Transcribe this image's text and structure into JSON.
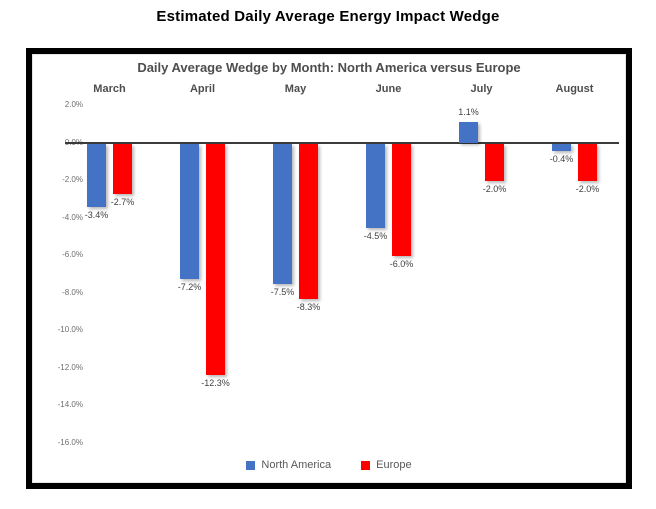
{
  "page_title": "Estimated Daily Average Energy Impact Wedge",
  "chart_data": {
    "type": "bar",
    "title": "Daily Average Wedge by Month: North America versus Europe",
    "categories": [
      "March",
      "April",
      "May",
      "June",
      "July",
      "August"
    ],
    "series": [
      {
        "name": "North America",
        "color": "#4472C4",
        "values": [
          -3.4,
          -7.2,
          -7.5,
          -4.5,
          1.1,
          -0.4
        ],
        "labels": [
          "-3.4%",
          "-7.2%",
          "-7.5%",
          "-4.5%",
          "1.1%",
          "-0.4%"
        ]
      },
      {
        "name": "Europe",
        "color": "#FF0000",
        "values": [
          -2.7,
          -12.3,
          -8.3,
          -6.0,
          -2.0,
          -2.0
        ],
        "labels": [
          "-2.7%",
          "-12.3%",
          "-8.3%",
          "-6.0%",
          "-2.0%",
          "-2.0%"
        ]
      }
    ],
    "ylim": [
      -16,
      2
    ],
    "ytick_step": 2,
    "ytick_labels": [
      "2.0%",
      "0.0%",
      "-2.0%",
      "-4.0%",
      "-6.0%",
      "-8.0%",
      "-10.0%",
      "-12.0%",
      "-14.0%",
      "-16.0%"
    ],
    "grid": false,
    "legend_position": "bottom",
    "axis_line_color": "#3b3b3b"
  }
}
